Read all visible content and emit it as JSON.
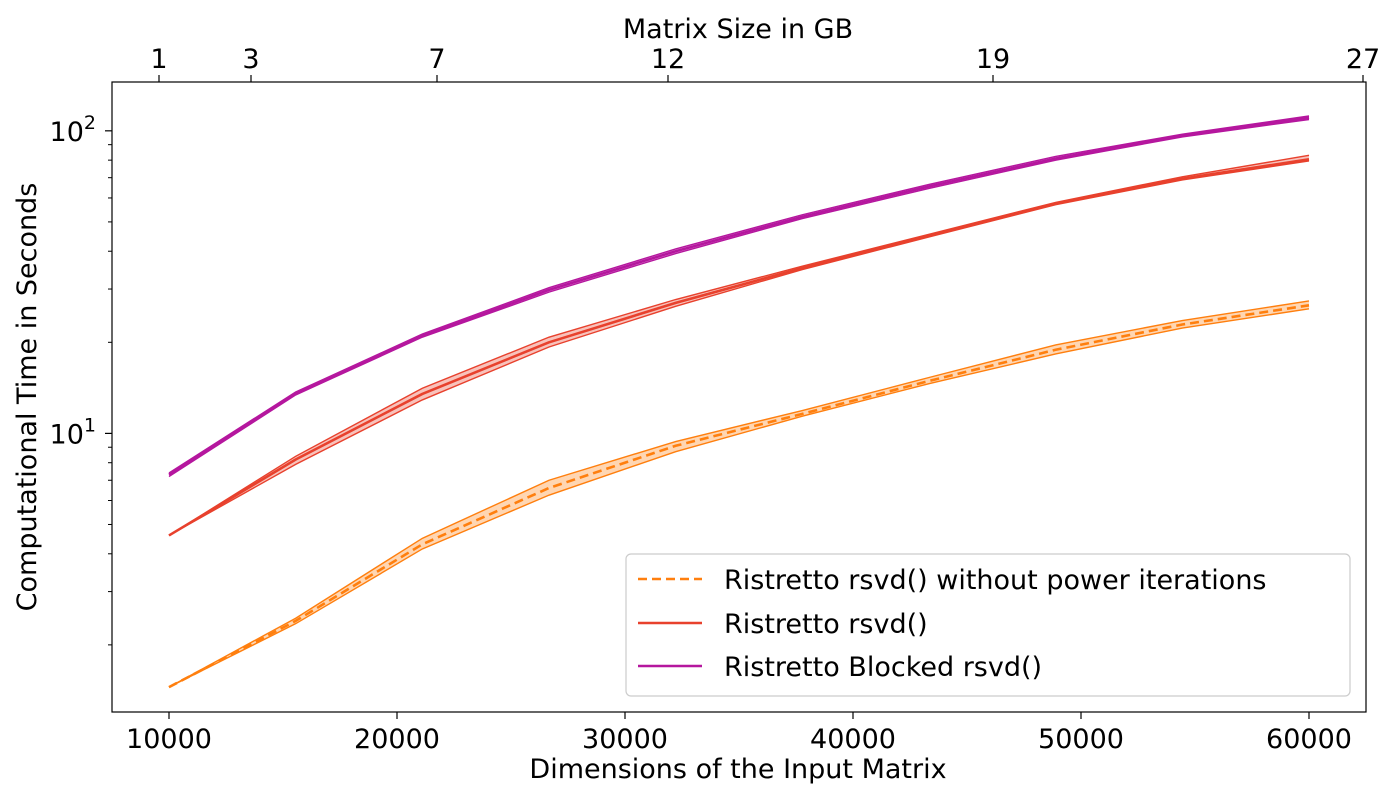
{
  "chart_data": {
    "type": "line",
    "xlabel": "Dimensions of the Input Matrix",
    "ylabel": "Computational Time in Seconds",
    "top_xlabel": "Matrix Size in GB",
    "xlim": [
      7500,
      62500
    ],
    "ylim": [
      1.2,
      145
    ],
    "yscale": "log",
    "x_ticks": [
      "10000",
      "20000",
      "30000",
      "40000",
      "50000",
      "60000"
    ],
    "x_tick_values": [
      10000,
      20000,
      30000,
      40000,
      50000,
      60000
    ],
    "top_ticks": [
      "1",
      "3",
      "7",
      "12",
      "19",
      "27"
    ],
    "top_tick_positions": [
      7500,
      11500,
      19650,
      29800,
      44000,
      60200
    ],
    "y_tick_labels": [
      {
        "base": "10",
        "exp": "1",
        "value": 10
      },
      {
        "base": "10",
        "exp": "2",
        "value": 100
      }
    ],
    "y_minor_ticks": [
      2,
      3,
      4,
      5,
      6,
      7,
      8,
      9,
      20,
      30,
      40,
      50,
      60,
      70,
      80,
      90
    ],
    "legend_position": "lower-right",
    "x": [
      10000,
      15556,
      21111,
      26667,
      32222,
      37778,
      43333,
      48889,
      54444,
      60000
    ],
    "series": [
      {
        "name": "Ristretto rsvd() without power iterations",
        "color": "#ff7f0e",
        "dashed": true,
        "values": [
          1.45,
          2.4,
          4.3,
          6.6,
          9.1,
          11.6,
          14.9,
          18.9,
          22.9,
          26.5
        ],
        "band_low": [
          1.45,
          2.35,
          4.15,
          6.25,
          8.7,
          11.4,
          14.6,
          18.3,
          22.3,
          25.8
        ],
        "band_high": [
          1.45,
          2.45,
          4.5,
          7.0,
          9.4,
          11.9,
          15.3,
          19.6,
          23.6,
          27.4
        ]
      },
      {
        "name": "Ristretto rsvd()",
        "color": "#e8412d",
        "dashed": false,
        "values": [
          4.6,
          8.2,
          13.5,
          20.0,
          27.0,
          35.2,
          45.0,
          57.5,
          69.5,
          80.5
        ],
        "band_low": [
          4.6,
          7.9,
          12.9,
          19.3,
          26.3,
          34.8,
          44.6,
          57.0,
          68.8,
          79.5
        ],
        "band_high": [
          4.6,
          8.4,
          14.1,
          20.8,
          27.7,
          35.7,
          45.5,
          58.0,
          70.5,
          83.0
        ]
      },
      {
        "name": "Ristretto Blocked rsvd()",
        "color": "#b5179e",
        "dashed": false,
        "values": [
          7.3,
          13.5,
          21.0,
          29.8,
          40.0,
          52.0,
          65.5,
          81.0,
          96.5,
          110.5
        ],
        "band_low": [
          7.2,
          13.4,
          20.8,
          29.3,
          39.3,
          51.3,
          64.5,
          80.0,
          95.5,
          109.0
        ],
        "band_high": [
          7.4,
          13.7,
          21.3,
          30.3,
          40.7,
          52.8,
          66.5,
          82.3,
          97.5,
          112.0
        ]
      }
    ]
  }
}
